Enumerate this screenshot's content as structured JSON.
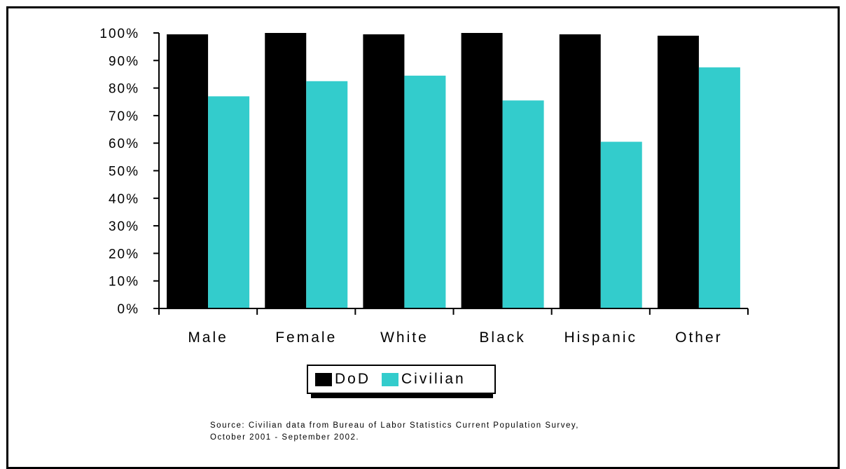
{
  "chart_data": {
    "type": "bar",
    "categories": [
      "Male",
      "Female",
      "White",
      "Black",
      "Hispanic",
      "Other"
    ],
    "series": [
      {
        "name": "DoD",
        "color": "#000000",
        "values": [
          99.5,
          100,
          99.5,
          100,
          99.5,
          99
        ]
      },
      {
        "name": "Civilian",
        "color": "#33CCCC",
        "values": [
          77,
          82.5,
          84.5,
          75.5,
          60.5,
          87.5
        ]
      }
    ],
    "yticks": [
      "0%",
      "10%",
      "20%",
      "30%",
      "40%",
      "50%",
      "60%",
      "70%",
      "80%",
      "90%",
      "100%"
    ],
    "ylim": [
      0,
      100
    ],
    "legend_position": "bottom-center",
    "grid": false
  },
  "source_line1": "Source:  Civilian data from Bureau of Labor Statistics Current Population Survey,",
  "source_line2": "October 2001 - September 2002."
}
